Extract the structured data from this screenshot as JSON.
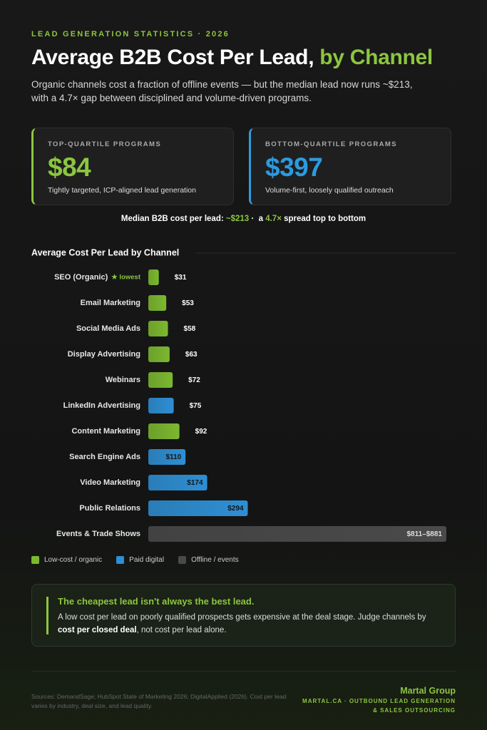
{
  "header": {
    "eyebrow": "LEAD GENERATION STATISTICS · 2026",
    "title": "Average B2B Cost Per Lead, ",
    "title_highlight": "by Channel",
    "subtitle": "Organic channels cost a fraction of offline events — but the median lead now runs ~$213, with a 4.7× gap between disciplined and volume-driven programs."
  },
  "cards": [
    {
      "label": "TOP-QUARTILE PROGRAMS",
      "value": "$84",
      "description": "Tightly targeted, ICP-aligned lead generation",
      "color": "#8cc63f"
    },
    {
      "label": "BOTTOM-QUARTILE PROGRAMS",
      "value": "$397",
      "description": "Volume-first, loosely qualified outreach",
      "color": "#2b9be0"
    }
  ],
  "median": {
    "prefix": "Median B2B cost per lead: ",
    "median": "~$213",
    "middle": " ·  a ",
    "spread": "4.7×",
    "suffix": " spread top to bottom"
  },
  "chart_data": {
    "type": "bar",
    "orientation": "horizontal",
    "title": "Average Cost Per Lead by Channel",
    "categories": [
      "SEO (Organic)",
      "Email Marketing",
      "Social Media Ads",
      "Display Advertising",
      "Webinars",
      "LinkedIn Advertising",
      "Content Marketing",
      "Search Engine Ads",
      "Video Marketing",
      "Public Relations",
      "Events & Trade Shows"
    ],
    "values": [
      31,
      53,
      58,
      63,
      72,
      75,
      92,
      110,
      174,
      294,
      881
    ],
    "value_labels": [
      "$31",
      "$53",
      "$58",
      "$63",
      "$72",
      "$75",
      "$92",
      "$110",
      "$174",
      "$294",
      "$811–$881"
    ],
    "groups": [
      0,
      0,
      0,
      0,
      0,
      1,
      0,
      1,
      1,
      1,
      2
    ],
    "annotations": [
      {
        "category": 0,
        "text": "★ lowest"
      }
    ],
    "legend": [
      {
        "name": "Low-cost / organic",
        "color": "#7cb82f"
      },
      {
        "name": "Paid digital",
        "color": "#2e8fd4"
      },
      {
        "name": "Offline / events",
        "color": "#4a4a4a"
      }
    ]
  },
  "callout": {
    "title": "The cheapest lead isn't always the best lead.",
    "body": "A low cost per lead on poorly qualified prospects gets expensive at the deal stage. Judge channels by ",
    "body_bold": "cost per closed deal",
    "body_end": ", not cost per lead alone."
  },
  "footer": {
    "sources": "Sources: DemandSage; HubSpot State of Marketing 2026; DigitalApplied (2026). Cost per lead varies by industry, deal size, and lead quality.",
    "brand": "Martal Group",
    "tagline_1": "MARTAL.CA · OUTBOUND LEAD GENERATION",
    "tagline_2": "& SALES OUTSOURCING"
  }
}
